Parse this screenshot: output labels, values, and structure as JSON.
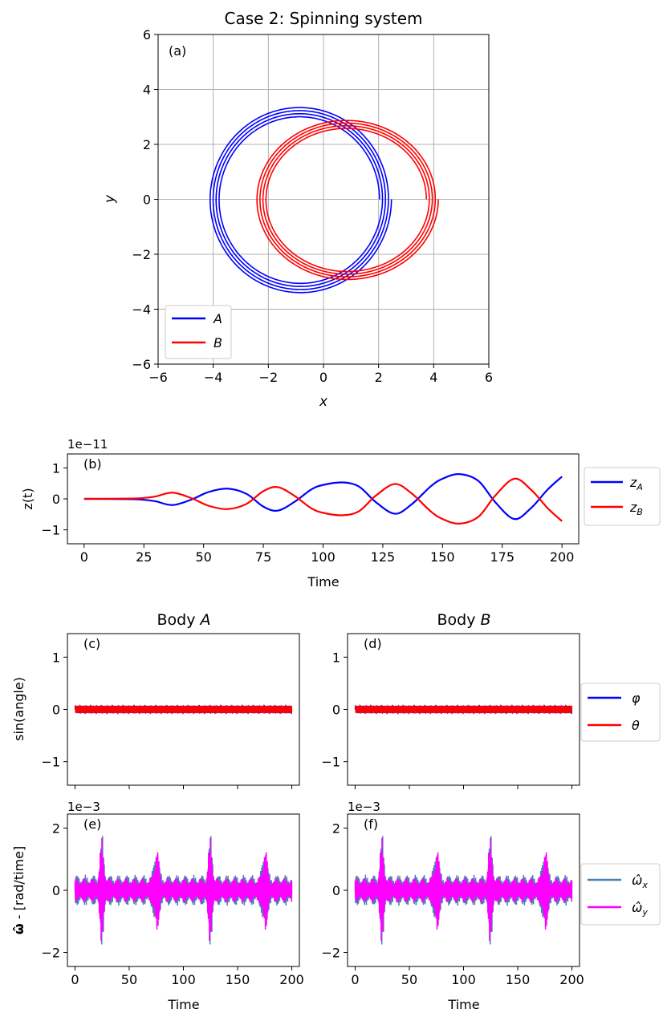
{
  "colors": {
    "blue": "#0000ff",
    "red": "#ff0000",
    "steelblue": "#4682b4",
    "magenta": "#ff00ff",
    "grid": "#b0b0b0"
  },
  "chart_data": [
    {
      "id": "a",
      "type": "line",
      "title": "Case 2: Spinning system",
      "panel_label": "(a)",
      "xlabel": "x",
      "ylabel": "y",
      "xlim": [
        -6,
        6
      ],
      "ylim": [
        -6,
        6
      ],
      "xticks": [
        -6,
        -4,
        -2,
        0,
        2,
        4,
        6
      ],
      "yticks": [
        -6,
        -4,
        -2,
        0,
        2,
        4,
        6
      ],
      "xtick_labels": [
        "−6",
        "−4",
        "−2",
        "0",
        "2",
        "4",
        "6"
      ],
      "ytick_labels": [
        "−6",
        "−4",
        "−2",
        "0",
        "2",
        "4",
        "6"
      ],
      "grid": true,
      "legend": {
        "placement": "lower-left",
        "entries": [
          "A",
          "B"
        ]
      },
      "series": [
        {
          "name": "A",
          "color": "blue",
          "center": [
            -0.85,
            0.0
          ],
          "radius_x": 3.1,
          "radius_y": 3.2,
          "loops": 4,
          "spread": 0.07
        },
        {
          "name": "B",
          "color": "red",
          "center": [
            0.85,
            0.0
          ],
          "radius_x": 3.1,
          "radius_y": 2.75,
          "loops": 4,
          "spread": 0.07
        }
      ]
    },
    {
      "id": "b",
      "type": "line",
      "panel_label": "(b)",
      "offset_text": "1e−11",
      "xlabel": "Time",
      "ylabel": "z(t)",
      "xlim": [
        -7,
        207
      ],
      "ylim": [
        -1.45,
        1.45
      ],
      "xticks": [
        0,
        25,
        50,
        75,
        100,
        125,
        150,
        175,
        200
      ],
      "yticks": [
        -1,
        0,
        1
      ],
      "ytick_labels": [
        "−1",
        "0",
        "1"
      ],
      "legend": {
        "placement": "outside-right",
        "entries": [
          "z_A",
          "z_B"
        ]
      },
      "series": [
        {
          "name": "z_A",
          "color": "blue",
          "x": [
            0,
            20,
            25,
            30,
            37,
            45,
            52,
            60,
            68,
            75,
            81,
            88,
            95,
            100,
            108,
            115,
            122,
            130,
            137,
            145,
            150,
            157,
            165,
            172,
            180,
            187,
            194,
            200
          ],
          "y": [
            0,
            -0.01,
            -0.03,
            -0.08,
            -0.2,
            -0.02,
            0.22,
            0.33,
            0.16,
            -0.25,
            -0.38,
            -0.1,
            0.3,
            0.45,
            0.53,
            0.4,
            -0.1,
            -0.48,
            -0.18,
            0.4,
            0.65,
            0.8,
            0.58,
            -0.1,
            -0.65,
            -0.3,
            0.3,
            0.72
          ]
        },
        {
          "name": "z_B",
          "color": "red",
          "x": [
            0,
            20,
            25,
            30,
            37,
            45,
            52,
            60,
            68,
            75,
            81,
            88,
            95,
            100,
            108,
            115,
            122,
            130,
            137,
            145,
            150,
            157,
            165,
            172,
            180,
            187,
            194,
            200
          ],
          "y": [
            0,
            0.01,
            0.03,
            0.08,
            0.2,
            0.02,
            -0.22,
            -0.33,
            -0.16,
            0.25,
            0.38,
            0.1,
            -0.3,
            -0.45,
            -0.53,
            -0.4,
            0.1,
            0.48,
            0.18,
            -0.4,
            -0.65,
            -0.8,
            -0.58,
            0.1,
            0.65,
            0.3,
            -0.3,
            -0.72
          ]
        }
      ]
    },
    {
      "id": "c",
      "type": "line",
      "title": "Body A",
      "panel_label": "(c)",
      "ylabel": "sin(angle)",
      "xlim": [
        -7,
        207
      ],
      "ylim": [
        -1.45,
        1.45
      ],
      "yticks": [
        -1,
        0,
        1
      ],
      "ytick_labels": [
        "−1",
        "0",
        "1"
      ],
      "series": [
        {
          "name": "φ",
          "color": "blue",
          "amplitude": 0.07,
          "oscillations_per_unit": 0.7
        },
        {
          "name": "θ",
          "color": "red",
          "amplitude": 0.07,
          "oscillations_per_unit": 0.7
        }
      ]
    },
    {
      "id": "d",
      "type": "line",
      "title": "Body B",
      "panel_label": "(d)",
      "xlim": [
        -7,
        207
      ],
      "ylim": [
        -1.45,
        1.45
      ],
      "yticks": [
        -1,
        0,
        1
      ],
      "ytick_labels": [
        "−1",
        "0",
        "1"
      ],
      "legend": {
        "placement": "outside-right",
        "entries": [
          "φ",
          "θ"
        ]
      },
      "series": [
        {
          "name": "φ",
          "color": "blue",
          "amplitude": 0.07,
          "oscillations_per_unit": 0.7
        },
        {
          "name": "θ",
          "color": "red",
          "amplitude": 0.07,
          "oscillations_per_unit": 0.7
        }
      ]
    },
    {
      "id": "e",
      "type": "line",
      "panel_label": "(e)",
      "offset_text": "1e−3",
      "xlabel": "Time",
      "ylabel": "ω̂ - [rad/time]",
      "xlim": [
        -7,
        207
      ],
      "ylim": [
        -2.45,
        2.45
      ],
      "xticks": [
        0,
        50,
        100,
        150,
        200
      ],
      "yticks": [
        -2,
        0,
        2
      ],
      "ytick_labels": [
        "−2",
        "0",
        "2"
      ],
      "burst_centers": [
        25,
        75,
        125,
        175
      ],
      "series": [
        {
          "name": "ω̂_x",
          "color": "steelblue",
          "base_amplitude": 0.5,
          "peak_amplitude": 1.8
        },
        {
          "name": "ω̂_y",
          "color": "magenta",
          "base_amplitude": 0.4,
          "peak_amplitude": 1.85
        }
      ]
    },
    {
      "id": "f",
      "type": "line",
      "panel_label": "(f)",
      "offset_text": "1e−3",
      "xlabel": "Time",
      "xlim": [
        -7,
        207
      ],
      "ylim": [
        -2.45,
        2.45
      ],
      "xticks": [
        0,
        50,
        100,
        150,
        200
      ],
      "yticks": [
        -2,
        0,
        2
      ],
      "ytick_labels": [
        "−2",
        "0",
        "2"
      ],
      "burst_centers": [
        25,
        75,
        125,
        175
      ],
      "legend": {
        "placement": "outside-right",
        "entries": [
          "ω̂_x",
          "ω̂_y"
        ]
      },
      "series": [
        {
          "name": "ω̂_x",
          "color": "steelblue",
          "base_amplitude": 0.5,
          "peak_amplitude": 1.8
        },
        {
          "name": "ω̂_y",
          "color": "magenta",
          "base_amplitude": 0.4,
          "peak_amplitude": 1.85
        }
      ]
    }
  ]
}
